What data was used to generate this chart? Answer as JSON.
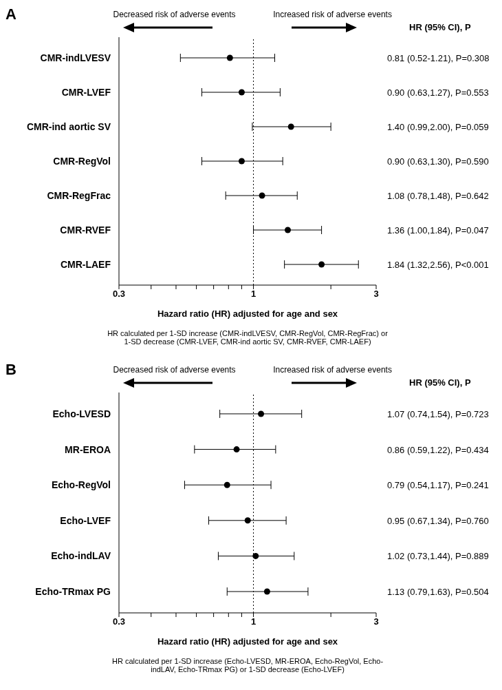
{
  "chart_data": [
    {
      "type": "scatter",
      "title": "A",
      "orientation": "horizontal",
      "log": "x",
      "grid": false,
      "marker": "circle",
      "color": "#000000",
      "categories": [
        "CMR-indLVESV",
        "CMR-LVEF",
        "CMR-ind aortic SV",
        "CMR-RegVol",
        "CMR-RegFrac",
        "CMR-RVEF",
        "CMR-LAEF"
      ],
      "values": [
        0.81,
        0.9,
        1.4,
        0.9,
        1.08,
        1.36,
        1.84
      ],
      "errors": [
        [
          0.52,
          1.21
        ],
        [
          0.63,
          1.27
        ],
        [
          0.99,
          2.0
        ],
        [
          0.63,
          1.3
        ],
        [
          0.78,
          1.48
        ],
        [
          1.0,
          1.84
        ],
        [
          1.32,
          2.56
        ]
      ],
      "value_labels": [
        "0.81 (0.52-1.21), P=0.308",
        "0.90 (0.63,1.27), P=0.553",
        "1.40 (0.99,2.00), P=0.059",
        "0.90 (0.63,1.30), P=0.590",
        "1.08 (0.78,1.48), P=0.642",
        "1.36 (1.00,1.84), P=0.047",
        "1.84 (1.32,2.56), P<0.001"
      ],
      "xlim": [
        0.3,
        3
      ],
      "xticks": [
        0.3,
        {
          "value": 0.4,
          "label": null
        },
        {
          "value": 0.5,
          "label": null
        },
        {
          "value": 0.6,
          "label": null
        },
        {
          "value": 0.7,
          "label": null
        },
        {
          "value": 0.8,
          "label": null
        },
        {
          "value": 0.9,
          "label": null
        },
        1,
        {
          "value": 2,
          "label": null
        },
        3
      ],
      "xlabel": "Hazard ratio (HR) adjusted for age and sex",
      "ref_lines": [
        {
          "axis": "x",
          "value": 1,
          "line_style": "dotted"
        }
      ],
      "annotations": [
        "Decreased risk of adverse events",
        "Increased risk of adverse events",
        "HR (95% CI), P",
        "HR calculated per 1-SD increase (CMR-indLVESV, CMR-RegVol, CMR-RegFrac) or 1-SD decrease (CMR-LVEF, CMR-ind aortic SV, CMR-RVEF, CMR-LAEF)"
      ]
    },
    {
      "type": "scatter",
      "title": "B",
      "orientation": "horizontal",
      "log": "x",
      "grid": false,
      "marker": "circle",
      "color": "#000000",
      "categories": [
        "Echo-LVESD",
        "MR-EROA",
        "Echo-RegVol",
        "Echo-LVEF",
        "Echo-indLAV",
        "Echo-TRmax PG"
      ],
      "values": [
        1.07,
        0.86,
        0.79,
        0.95,
        1.02,
        1.13
      ],
      "errors": [
        [
          0.74,
          1.54
        ],
        [
          0.59,
          1.22
        ],
        [
          0.54,
          1.17
        ],
        [
          0.67,
          1.34
        ],
        [
          0.73,
          1.44
        ],
        [
          0.79,
          1.63
        ]
      ],
      "value_labels": [
        "1.07 (0.74,1.54), P=0.723",
        "0.86 (0.59,1.22), P=0.434",
        "0.79 (0.54,1.17), P=0.241",
        "0.95 (0.67,1.34), P=0.760",
        "1.02 (0.73,1.44), P=0.889",
        "1.13 (0.79,1.63), P=0.504"
      ],
      "xlim": [
        0.3,
        3
      ],
      "xticks": [
        0.3,
        {
          "value": 0.4,
          "label": null
        },
        {
          "value": 0.5,
          "label": null
        },
        {
          "value": 0.6,
          "label": null
        },
        {
          "value": 0.7,
          "label": null
        },
        {
          "value": 0.8,
          "label": null
        },
        {
          "value": 0.9,
          "label": null
        },
        1,
        {
          "value": 2,
          "label": null
        },
        3
      ],
      "xlabel": "Hazard ratio (HR) adjusted for age and sex",
      "ref_lines": [
        {
          "axis": "x",
          "value": 1,
          "line_style": "dotted"
        }
      ],
      "annotations": [
        "Decreased risk of adverse events",
        "Increased risk of adverse events",
        "HR (95% CI), P",
        "HR calculated per 1-SD increase (Echo-LVESD, MR-EROA, Echo-RegVol, Echo-indLAV, Echo-TRmax PG) or 1-SD decrease (Echo-LVEF)"
      ]
    }
  ]
}
